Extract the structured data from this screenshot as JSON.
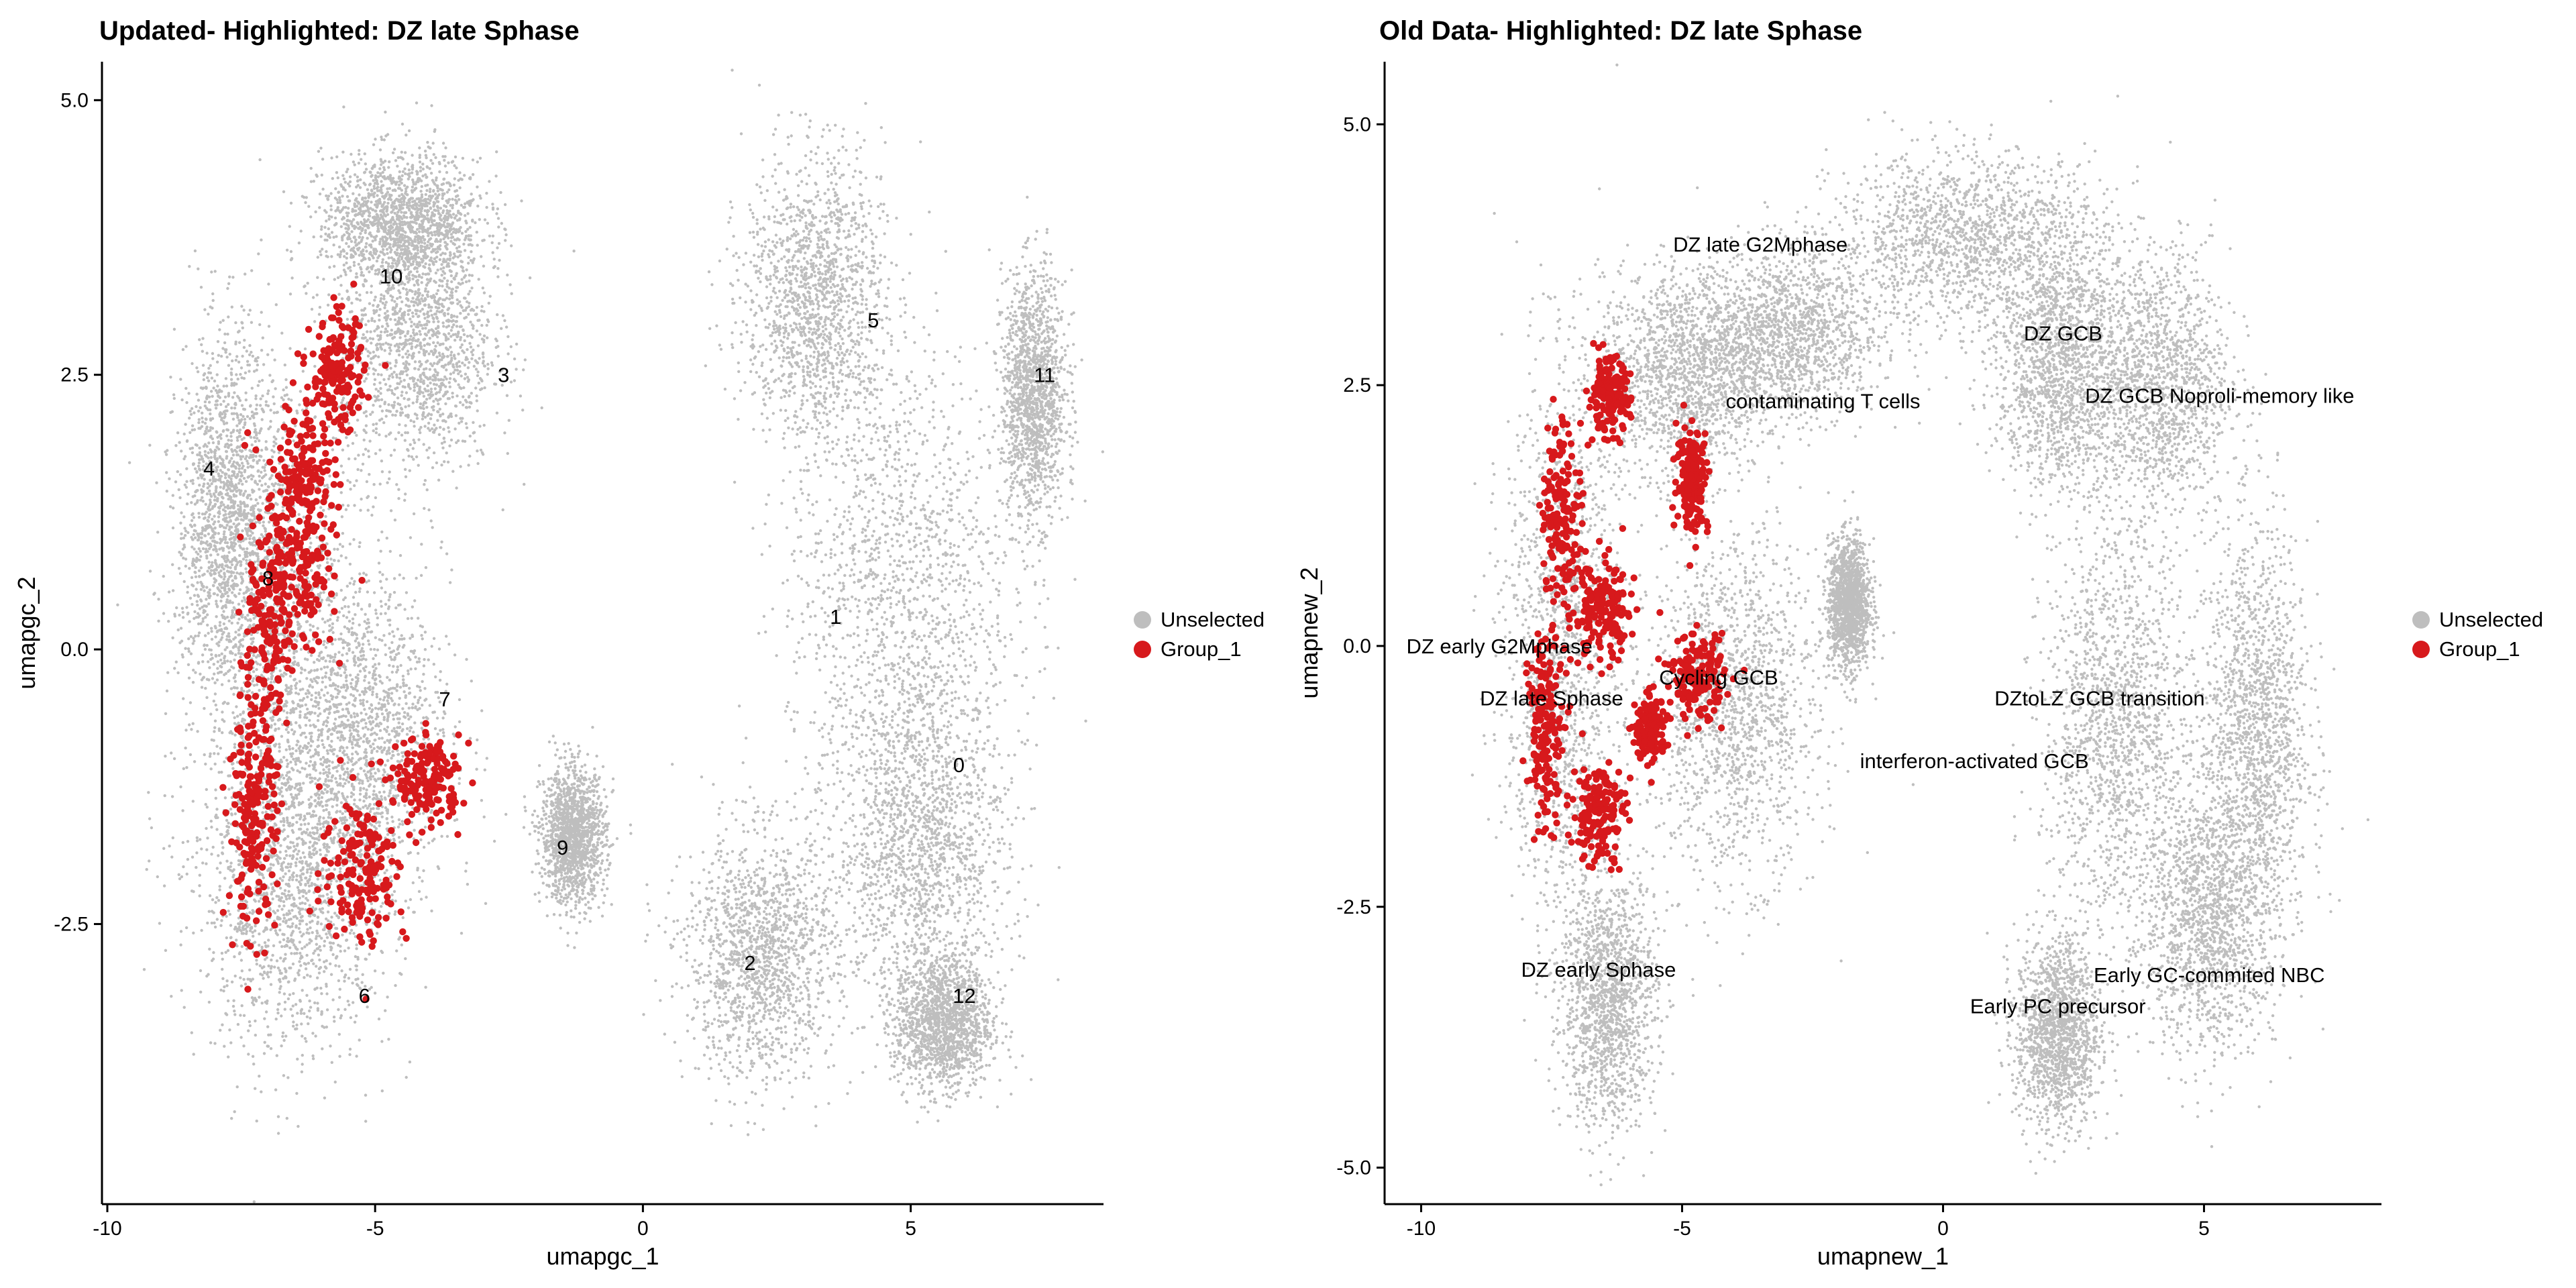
{
  "colors": {
    "unselected": "#bebebe",
    "group": "#d7191c",
    "axis": "#000000"
  },
  "chart_data": [
    {
      "type": "scatter",
      "title": "Updated- Highlighted: DZ late Sphase",
      "xlabel": "umapgc_1",
      "ylabel": "umapgc_2",
      "xlim": [
        -10.1,
        8.6
      ],
      "ylim": [
        -5.05,
        5.35
      ],
      "xticks": [
        -10,
        -5,
        0,
        5
      ],
      "xtick_labels": [
        "-10",
        "-5",
        "0",
        "5"
      ],
      "yticks": [
        5.0,
        2.5,
        0.0,
        -2.5
      ],
      "ytick_labels": [
        "5.0",
        "2.5",
        "0.0",
        "-2.5"
      ],
      "legend": {
        "placement": "right",
        "entries": [
          "Unselected",
          "Group_1"
        ]
      },
      "series": [
        {
          "name": "Unselected",
          "color": "#bebebe",
          "clusters": [
            [
              -6.8,
              0.2,
              1.6,
              2.6
            ],
            [
              -4.2,
              2.8,
              1.4,
              1.2
            ],
            [
              -7.8,
              1.2,
              0.9,
              1.6
            ],
            [
              -6.5,
              -2.2,
              1.8,
              1.5
            ],
            [
              -5.2,
              -0.8,
              1.6,
              1.4
            ],
            [
              -4.5,
              3.9,
              1.5,
              0.6
            ],
            [
              -1.3,
              -1.7,
              0.6,
              0.6
            ],
            [
              3.2,
              3.2,
              1.3,
              1.3
            ],
            [
              4.8,
              0.5,
              2.1,
              2.3
            ],
            [
              5.2,
              -1.8,
              1.6,
              1.4
            ],
            [
              2.2,
              -2.8,
              1.4,
              1.1
            ],
            [
              5.6,
              -3.4,
              0.9,
              0.6
            ],
            [
              7.3,
              2.3,
              0.6,
              1.1
            ]
          ]
        },
        {
          "name": "Group_1",
          "color": "#d7191c",
          "clusters": [
            [
              -6.3,
              1.6,
              0.55,
              0.7
            ],
            [
              -7.1,
              0.0,
              0.45,
              1.3
            ],
            [
              -7.3,
              -1.6,
              0.45,
              0.9
            ],
            [
              -5.2,
              -2.0,
              0.8,
              0.7
            ],
            [
              -4.0,
              -1.2,
              0.6,
              0.4
            ],
            [
              -5.7,
              2.5,
              0.5,
              0.5
            ],
            [
              -6.5,
              0.6,
              0.7,
              0.7
            ]
          ]
        }
      ],
      "annotations": [
        {
          "text": "10",
          "x": -4.7,
          "y": 3.4
        },
        {
          "text": "3",
          "x": -2.6,
          "y": 2.5
        },
        {
          "text": "4",
          "x": -8.1,
          "y": 1.65
        },
        {
          "text": "8",
          "x": -7.0,
          "y": 0.65
        },
        {
          "text": "7",
          "x": -3.7,
          "y": -0.45
        },
        {
          "text": "9",
          "x": -1.5,
          "y": -1.8
        },
        {
          "text": "6",
          "x": -5.2,
          "y": -3.15
        },
        {
          "text": "5",
          "x": 4.3,
          "y": 3.0
        },
        {
          "text": "11",
          "x": 7.5,
          "y": 2.5
        },
        {
          "text": "1",
          "x": 3.6,
          "y": 0.3
        },
        {
          "text": "0",
          "x": 5.9,
          "y": -1.05
        },
        {
          "text": "2",
          "x": 2.0,
          "y": -2.85
        },
        {
          "text": "12",
          "x": 6.0,
          "y": -3.15
        }
      ]
    },
    {
      "type": "scatter",
      "title": "Old Data- Highlighted: DZ late Sphase",
      "xlabel": "umapnew_1",
      "ylabel": "umapnew_2",
      "xlim": [
        -10.7,
        8.4
      ],
      "ylim": [
        -5.35,
        5.6
      ],
      "xticks": [
        -10,
        -5,
        0,
        5
      ],
      "xtick_labels": [
        "-10",
        "-5",
        "0",
        "5"
      ],
      "yticks": [
        5.0,
        2.5,
        0.0,
        -2.5,
        -5.0
      ],
      "ytick_labels": [
        "5.0",
        "2.5",
        "0.0",
        "-2.5",
        "-5.0"
      ],
      "legend": {
        "placement": "right",
        "entries": [
          "Unselected",
          "Group_1"
        ]
      },
      "series": [
        {
          "name": "Unselected",
          "color": "#bebebe",
          "clusters": [
            [
              -7.3,
              0.0,
              1.1,
              2.6
            ],
            [
              -5.0,
              2.6,
              1.6,
              1.0
            ],
            [
              -4.0,
              -0.6,
              1.6,
              1.6
            ],
            [
              -6.4,
              -3.4,
              0.9,
              1.2
            ],
            [
              -3.0,
              3.0,
              1.8,
              0.8
            ],
            [
              -1.8,
              0.4,
              0.4,
              0.6
            ],
            [
              0.5,
              3.9,
              2.6,
              0.8
            ],
            [
              2.2,
              2.7,
              1.2,
              1.2
            ],
            [
              4.1,
              2.5,
              1.4,
              1.3
            ],
            [
              3.3,
              -0.8,
              1.4,
              1.8
            ],
            [
              5.1,
              -2.6,
              1.3,
              1.3
            ],
            [
              2.2,
              -3.7,
              0.8,
              0.9
            ],
            [
              6.0,
              -0.8,
              1.0,
              1.9
            ]
          ]
        },
        {
          "name": "Group_1",
          "color": "#d7191c",
          "clusters": [
            [
              -7.6,
              -0.8,
              0.35,
              0.9
            ],
            [
              -7.3,
              1.3,
              0.4,
              0.9
            ],
            [
              -6.6,
              -1.6,
              0.5,
              0.5
            ],
            [
              -6.4,
              2.4,
              0.4,
              0.35
            ],
            [
              -4.8,
              1.6,
              0.3,
              0.5
            ],
            [
              -5.6,
              -0.8,
              0.3,
              0.3
            ],
            [
              -4.7,
              -0.3,
              0.5,
              0.4
            ],
            [
              -6.5,
              0.3,
              0.6,
              0.5
            ]
          ]
        }
      ],
      "annotations": [
        {
          "text": "DZ late G2Mphase",
          "x": -3.5,
          "y": 3.85
        },
        {
          "text": "contaminating T cells",
          "x": -2.3,
          "y": 2.35
        },
        {
          "text": "DZ GCB",
          "x": 2.3,
          "y": 3.0
        },
        {
          "text": "DZ GCB Noproli-memory like",
          "x": 5.3,
          "y": 2.4
        },
        {
          "text": "DZ early G2Mphase",
          "x": -8.5,
          "y": 0.0
        },
        {
          "text": "Cycling GCB",
          "x": -4.3,
          "y": -0.3
        },
        {
          "text": "DZ late Sphase",
          "x": -7.5,
          "y": -0.5
        },
        {
          "text": "DZtoLZ GCB transition",
          "x": 3.0,
          "y": -0.5
        },
        {
          "text": "interferon-activated GCB",
          "x": 0.6,
          "y": -1.1
        },
        {
          "text": "DZ early  Sphase",
          "x": -6.6,
          "y": -3.1
        },
        {
          "text": "Early GC-commited NBC",
          "x": 5.1,
          "y": -3.15
        },
        {
          "text": "Early PC precursor",
          "x": 2.2,
          "y": -3.45
        }
      ]
    }
  ]
}
